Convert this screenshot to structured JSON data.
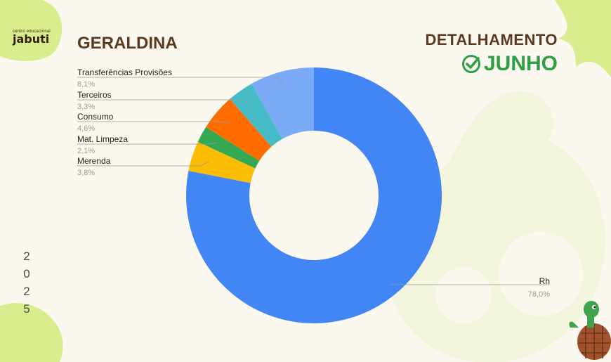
{
  "header": {
    "logo_small": "centro educacional",
    "logo_name": "jabuti",
    "title": "GERALDINA",
    "detail_label": "DETALHAMENTO",
    "month": "JUNHO"
  },
  "year_digits": [
    "2",
    "0",
    "2",
    "5"
  ],
  "colors": {
    "background": "#fbf8f0",
    "title_brown": "#5b3a1e",
    "month_green": "#2f9e45",
    "decor_green": "#d9ec8e"
  },
  "icons": [
    "check-circle-icon",
    "turtle-mascot-icon"
  ],
  "chart_data": {
    "type": "pie",
    "donut": true,
    "start_angle_deg": 0,
    "direction": "clockwise",
    "slices": [
      {
        "label": "Rh",
        "value": 78.0,
        "display": "78,0%",
        "color": "#4285f4"
      },
      {
        "label": "Merenda",
        "value": 3.8,
        "display": "3,8%",
        "color": "#fbbc04"
      },
      {
        "label": "Mat. Limpeza",
        "value": 2.1,
        "display": "2,1%",
        "color": "#34a853"
      },
      {
        "label": "Consumo",
        "value": 4.6,
        "display": "4,6%",
        "color": "#ff6d01"
      },
      {
        "label": "Terceiros",
        "value": 3.3,
        "display": "3,3%",
        "color": "#46bdc6"
      },
      {
        "label": "Transferências Provisões",
        "value": 8.1,
        "display": "8,1%",
        "color": "#7baaf7"
      }
    ]
  }
}
